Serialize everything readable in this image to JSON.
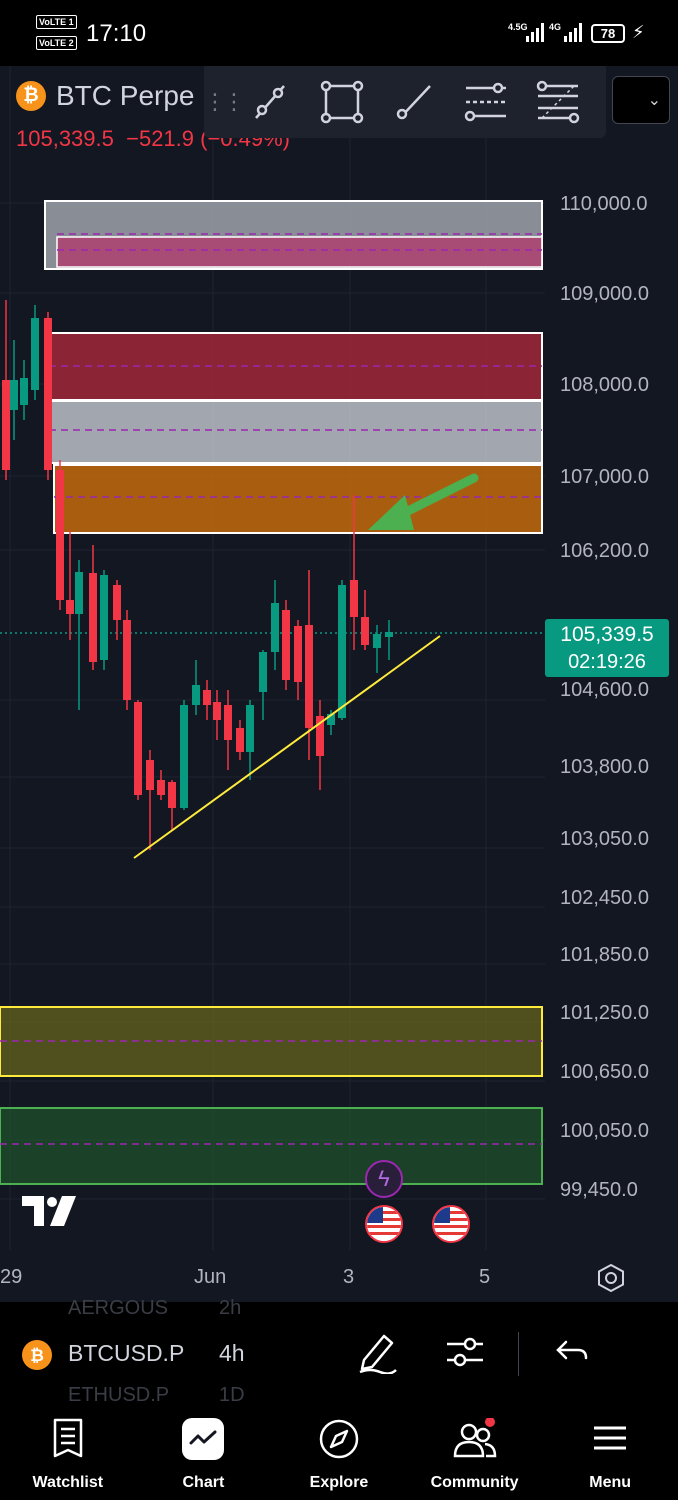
{
  "status_bar": {
    "sim1": "VoLTE 1",
    "sim2": "VoLTE 2",
    "time": "17:10",
    "net1": "4.5G",
    "net2": "4G",
    "battery": "78"
  },
  "chart": {
    "symbol_title": "BTC Perpe",
    "price": "105,339.5",
    "change": "−521.9 (−0.49%)",
    "timeframe_dropdown_icon": "chevron-down-icon",
    "price_axis": [
      "110,000.0",
      "109,000.0",
      "108,000.0",
      "107,000.0",
      "106,200.0",
      "104,600.0",
      "103,800.0",
      "103,050.0",
      "102,450.0",
      "101,850.0",
      "101,250.0",
      "100,650.0",
      "100,050.0",
      "99,450.0"
    ],
    "time_axis": [
      "29",
      "Jun",
      "3",
      "5"
    ],
    "last_price_tag": {
      "price": "105,339.5",
      "countdown": "02:19:26"
    },
    "up_color": "#089981",
    "down_color": "#f23645"
  },
  "drawing_toolbar": {
    "tools": [
      "trend-line-icon",
      "rectangle-icon",
      "ray-line-icon",
      "parallel-channel-icon",
      "fib-retracement-icon"
    ]
  },
  "symbol_bar": {
    "ghost_top": "AERGOUS",
    "ghost_top_tf": "2h",
    "symbol": "BTCUSD.P",
    "timeframe": "4h",
    "ghost_bottom": "ETHUSD.P",
    "ghost_bottom_tf": "1D"
  },
  "nav": {
    "items": [
      {
        "label": "Watchlist"
      },
      {
        "label": "Chart"
      },
      {
        "label": "Explore"
      },
      {
        "label": "Community"
      },
      {
        "label": "Menu"
      }
    ]
  }
}
